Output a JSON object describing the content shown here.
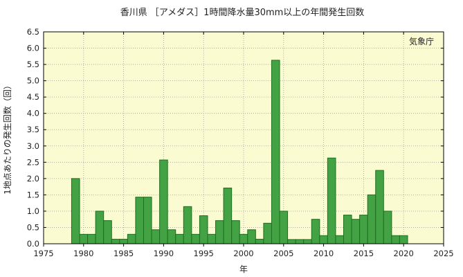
{
  "chart_data": {
    "type": "bar",
    "title": "香川県 ［アメダス］1時間降水量30mm以上の年間発生回数",
    "credit": "気象庁",
    "xlabel": "年",
    "ylabel": "1地点あたりの発生回数（回）",
    "xlim": [
      1975,
      2025
    ],
    "ylim": [
      0,
      6.5
    ],
    "x_ticks": [
      "1975",
      "1980",
      "1985",
      "1990",
      "1995",
      "2000",
      "2005",
      "2010",
      "2015",
      "2020",
      "2025"
    ],
    "y_ticks": [
      "0.0",
      "0.5",
      "1.0",
      "1.5",
      "2.0",
      "2.5",
      "3.0",
      "3.5",
      "4.0",
      "4.5",
      "5.0",
      "5.5",
      "6.0",
      "6.5"
    ],
    "grid": true,
    "years": [
      1979,
      1980,
      1981,
      1982,
      1983,
      1984,
      1985,
      1986,
      1987,
      1988,
      1989,
      1990,
      1991,
      1992,
      1993,
      1994,
      1995,
      1996,
      1997,
      1998,
      1999,
      2000,
      2001,
      2002,
      2003,
      2004,
      2005,
      2006,
      2007,
      2008,
      2009,
      2010,
      2011,
      2012,
      2013,
      2014,
      2015,
      2016,
      2017,
      2018,
      2019,
      2020
    ],
    "values": [
      2.0,
      0.29,
      0.29,
      1.0,
      0.71,
      0.14,
      0.14,
      0.29,
      1.43,
      1.43,
      0.43,
      2.57,
      0.43,
      0.29,
      1.14,
      0.29,
      0.86,
      0.29,
      0.71,
      1.71,
      0.71,
      0.29,
      0.43,
      0.14,
      0.63,
      5.63,
      1.0,
      0.13,
      0.13,
      0.13,
      0.75,
      0.25,
      2.63,
      0.25,
      0.88,
      0.75,
      0.88,
      1.5,
      2.25,
      1.0,
      0.25,
      0.25
    ],
    "colors": {
      "bar_fill": "#43a243",
      "bar_stroke": "#1e6e1e",
      "plot_background": "#fbfbd2",
      "grid": "#a0a0a0"
    }
  }
}
